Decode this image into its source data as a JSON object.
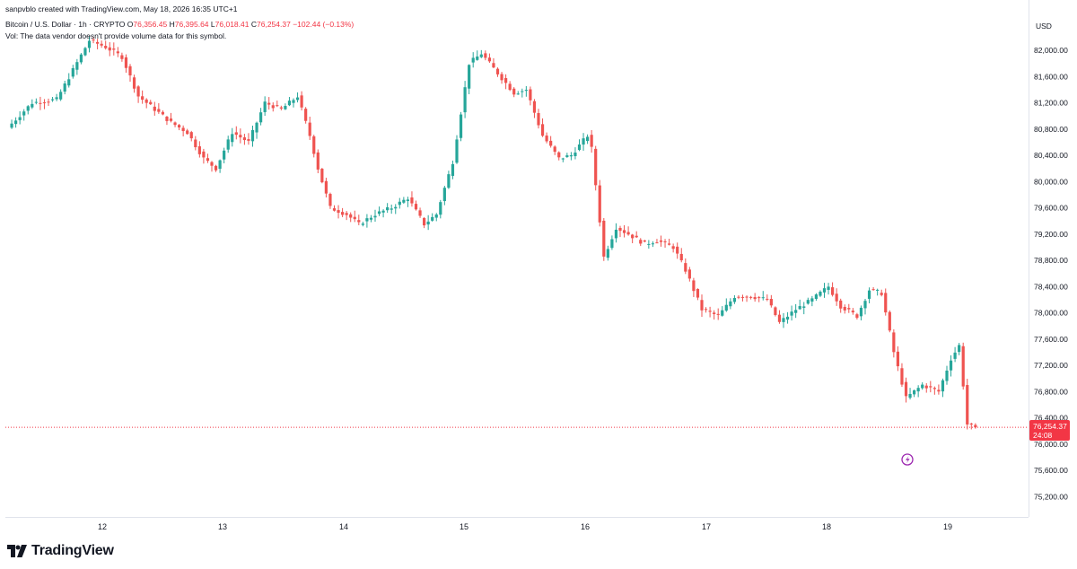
{
  "created_by": "sanpvblo created with TradingView.com, May 18, 2026 16:35 UTC+1",
  "symbol_line": {
    "name": "Bitcoin / U.S. Dollar · 1h · CRYPTO",
    "o_label": "O",
    "o_value": "76,356.45",
    "h_label": "H",
    "h_value": "76,395.64",
    "l_label": "L",
    "l_value": "76,018.41",
    "c_label": "C",
    "c_value": "76,254.37",
    "change": "−102.44 (−0.13%)"
  },
  "vol_note": "Vol: The data vendor doesn't provide volume data for this symbol.",
  "brand": "TradingView",
  "currency": "USD",
  "last_price_tag": {
    "price": "76,254.37",
    "countdown": "24:08",
    "color": "#f23645"
  },
  "colors": {
    "up": "#26a69a",
    "down": "#ef5350",
    "axis": "#e0e3eb"
  },
  "chart_data": {
    "type": "candlestick",
    "interval": "1h",
    "ylim": [
      74950,
      82400
    ],
    "y_ticks": [
      "82,000.00",
      "81,600.00",
      "81,200.00",
      "80,800.00",
      "80,400.00",
      "80,000.00",
      "79,600.00",
      "79,200.00",
      "78,800.00",
      "78,400.00",
      "78,000.00",
      "77,600.00",
      "77,200.00",
      "76,800.00",
      "76,400.00",
      "76,000.00",
      "75,600.00",
      "75,200.00"
    ],
    "y_tick_values": [
      82000,
      81600,
      81200,
      80800,
      80400,
      80000,
      79600,
      79200,
      78800,
      78400,
      78000,
      77600,
      77200,
      76800,
      76400,
      76000,
      75600,
      75200
    ],
    "x_ticks": [
      "12",
      "13",
      "14",
      "15",
      "16",
      "17",
      "18",
      "19"
    ],
    "candle_count": 220,
    "path_anchors": [
      [
        0,
        80820
      ],
      [
        6,
        81200
      ],
      [
        12,
        81250
      ],
      [
        16,
        81700
      ],
      [
        20,
        82150
      ],
      [
        24,
        82050
      ],
      [
        28,
        81900
      ],
      [
        32,
        81300
      ],
      [
        36,
        81100
      ],
      [
        40,
        80900
      ],
      [
        44,
        80750
      ],
      [
        48,
        80350
      ],
      [
        51,
        80200
      ],
      [
        55,
        80750
      ],
      [
        59,
        80600
      ],
      [
        63,
        81200
      ],
      [
        67,
        81100
      ],
      [
        71,
        81300
      ],
      [
        74,
        80700
      ],
      [
        76,
        80200
      ],
      [
        79,
        79600
      ],
      [
        83,
        79500
      ],
      [
        86,
        79350
      ],
      [
        90,
        79500
      ],
      [
        94,
        79600
      ],
      [
        98,
        79750
      ],
      [
        102,
        79350
      ],
      [
        105,
        79500
      ],
      [
        109,
        80300
      ],
      [
        113,
        81800
      ],
      [
        116,
        81950
      ],
      [
        120,
        81650
      ],
      [
        124,
        81350
      ],
      [
        127,
        81400
      ],
      [
        131,
        80700
      ],
      [
        135,
        80350
      ],
      [
        138,
        80400
      ],
      [
        142,
        80700
      ],
      [
        143,
        80500
      ],
      [
        146,
        78850
      ],
      [
        149,
        79300
      ],
      [
        152,
        79200
      ],
      [
        156,
        79050
      ],
      [
        159,
        79100
      ],
      [
        163,
        79000
      ],
      [
        166,
        78650
      ],
      [
        170,
        78050
      ],
      [
        174,
        77950
      ],
      [
        178,
        78250
      ],
      [
        182,
        78250
      ],
      [
        186,
        78200
      ],
      [
        189,
        77850
      ],
      [
        193,
        78050
      ],
      [
        197,
        78200
      ],
      [
        201,
        78400
      ],
      [
        204,
        78100
      ],
      [
        208,
        77950
      ],
      [
        211,
        78350
      ],
      [
        214,
        78300
      ],
      [
        217,
        77400
      ],
      [
        220,
        76700
      ],
      [
        224,
        76900
      ],
      [
        228,
        76800
      ],
      [
        231,
        77300
      ],
      [
        233,
        77500
      ],
      [
        235,
        76300
      ],
      [
        237,
        76255
      ]
    ]
  }
}
